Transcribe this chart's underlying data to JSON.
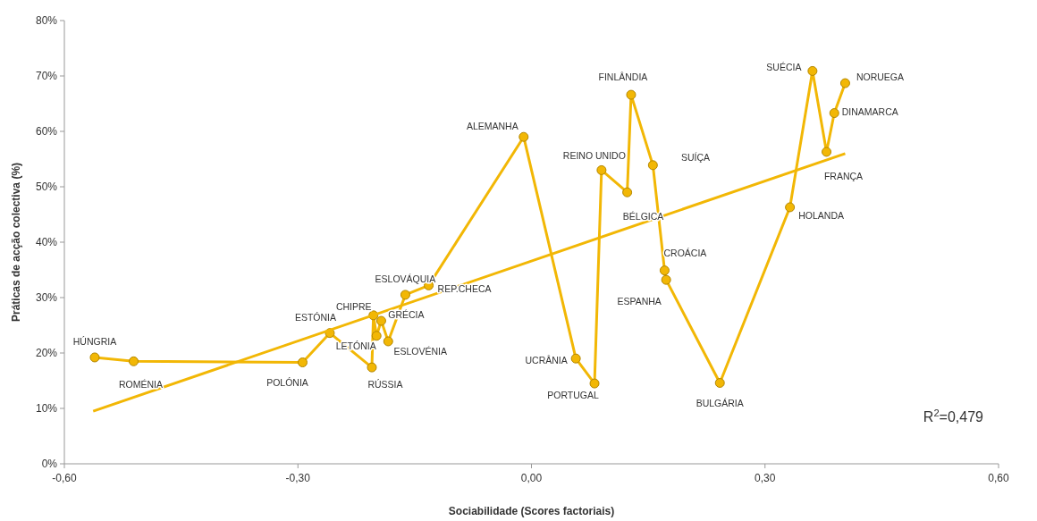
{
  "chart_data": {
    "type": "line",
    "xlabel": "Sociabilidade (Scores factoriais)",
    "ylabel": "Práticas de acção colectiva (%)",
    "xlim": [
      -0.6,
      0.6
    ],
    "xticks": [
      {
        "value": -0.6,
        "label": "-0,60"
      },
      {
        "value": -0.3,
        "label": "-0,30"
      },
      {
        "value": 0,
        "label": "0,00"
      },
      {
        "value": 0.3,
        "label": "0,30"
      },
      {
        "value": 0.6,
        "label": "0,60"
      }
    ],
    "ylim": [
      0,
      80
    ],
    "yticks": [
      {
        "value": 0,
        "label": "0%"
      },
      {
        "value": 10,
        "label": "10%"
      },
      {
        "value": 20,
        "label": "20%"
      },
      {
        "value": 30,
        "label": "30%"
      },
      {
        "value": 40,
        "label": "40%"
      },
      {
        "value": 50,
        "label": "50%"
      },
      {
        "value": 60,
        "label": "60%"
      },
      {
        "value": 70,
        "label": "70%"
      },
      {
        "value": 80,
        "label": "80%"
      }
    ],
    "grid": false,
    "marker": "circle",
    "line_style": "solid",
    "series": [
      {
        "color": "#f2b705",
        "x": [
          -0.561,
          -0.511,
          -0.294,
          -0.259,
          -0.205,
          -0.203,
          -0.199,
          -0.193,
          -0.184,
          -0.162,
          -0.132,
          -0.01,
          0.057,
          0.081,
          0.09,
          0.123,
          0.128,
          0.156,
          0.171,
          0.173,
          0.242,
          0.332,
          0.361,
          0.379,
          0.389,
          0.403
        ],
        "values": [
          19.2,
          18.5,
          18.3,
          23.6,
          17.4,
          26.8,
          23.1,
          25.8,
          22.1,
          30.5,
          32.2,
          59.0,
          19.0,
          14.5,
          53.0,
          49.0,
          66.6,
          53.9,
          34.9,
          33.2,
          14.6,
          46.3,
          70.9,
          56.3,
          63.3,
          68.7
        ]
      },
      {
        "type": "line",
        "marker": "none",
        "color": "#f2b705",
        "x": [
          -0.563,
          0.403
        ],
        "values": [
          9.5,
          56.0
        ]
      }
    ],
    "annotations": [
      {
        "text": "HÚNGRIA",
        "x": -0.561,
        "y": 19.2
      },
      {
        "text": "ROMÉNIA",
        "x": -0.511,
        "y": 18.5
      },
      {
        "text": "POLÓNIA",
        "x": -0.294,
        "y": 18.3
      },
      {
        "text": "ESTÓNIA",
        "x": -0.259,
        "y": 23.6
      },
      {
        "text": "RÚSSIA",
        "x": -0.205,
        "y": 17.4
      },
      {
        "text": "CHIPRE",
        "x": -0.203,
        "y": 26.8
      },
      {
        "text": "LETÓNIA",
        "x": -0.199,
        "y": 23.1
      },
      {
        "text": "GRÉCIA",
        "x": -0.193,
        "y": 25.8
      },
      {
        "text": "ESLOVÉNIA",
        "x": -0.184,
        "y": 22.1
      },
      {
        "text": "ESLOVÁQUIA",
        "x": -0.162,
        "y": 30.5
      },
      {
        "text": "REP.CHECA",
        "x": -0.132,
        "y": 32.2
      },
      {
        "text": "ALEMANHA",
        "x": -0.01,
        "y": 59.0
      },
      {
        "text": "UCRÂNIA",
        "x": 0.057,
        "y": 19.0
      },
      {
        "text": "PORTUGAL",
        "x": 0.081,
        "y": 14.5
      },
      {
        "text": "REINO UNIDO",
        "x": 0.09,
        "y": 53.0
      },
      {
        "text": "BÉLGICA",
        "x": 0.123,
        "y": 49.0
      },
      {
        "text": "FINLÂNDIA",
        "x": 0.128,
        "y": 66.6
      },
      "SUÍÇA",
      {
        "text": "CROÁCIA",
        "x": 0.171,
        "y": 34.9
      },
      {
        "text": "ESPANHA",
        "x": 0.173,
        "y": 33.2
      },
      {
        "text": "BULGÁRIA",
        "x": 0.242,
        "y": 14.6
      },
      {
        "text": "HOLANDA",
        "x": 0.332,
        "y": 46.3
      },
      {
        "text": "SUÉCIA",
        "x": 0.361,
        "y": 70.9
      },
      {
        "text": "FRANÇA",
        "x": 0.379,
        "y": 56.3
      },
      {
        "text": "DINAMARCA",
        "x": 0.389,
        "y": 63.3
      },
      {
        "text": "NORUEGA",
        "x": 0.403,
        "y": 68.7
      },
      "R$^{2}$=0,479"
    ]
  }
}
